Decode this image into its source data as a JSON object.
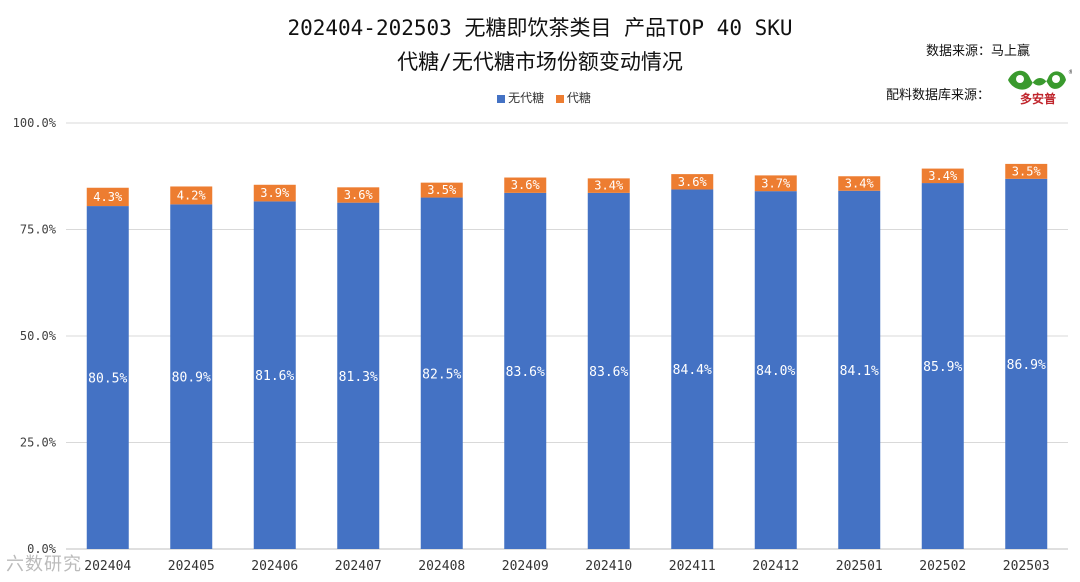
{
  "header": {
    "title_line1": "202404-202503 无糖即饮茶类目 产品TOP 40 SKU",
    "title_line2": "代糖/无代糖市场份额变动情况",
    "source_label": "数据来源：马上赢",
    "db_label": "配料数据库来源：",
    "logo_text": "多安普",
    "watermark": "六数研究"
  },
  "colors": {
    "no_sweetener": "#4472C4",
    "sweetener": "#ED7D31",
    "grid": "#d9d9d9",
    "axis": "#bfbfbf"
  },
  "chart_data": {
    "type": "bar",
    "stacked": true,
    "title": "202404-202503 无糖即饮茶类目 产品TOP 40 SKU 代糖/无代糖市场份额变动情况",
    "categories": [
      "202404",
      "202405",
      "202406",
      "202407",
      "202408",
      "202409",
      "202410",
      "202411",
      "202412",
      "202501",
      "202502",
      "202503"
    ],
    "series": [
      {
        "name": "无代糖",
        "values": [
          80.5,
          80.9,
          81.6,
          81.3,
          82.5,
          83.6,
          83.6,
          84.4,
          84.0,
          84.1,
          85.9,
          86.9
        ]
      },
      {
        "name": "代糖",
        "values": [
          4.3,
          4.2,
          3.9,
          3.6,
          3.5,
          3.6,
          3.4,
          3.6,
          3.7,
          3.4,
          3.4,
          3.5
        ]
      }
    ],
    "ylim": [
      0,
      100
    ],
    "yticks": [
      0,
      25,
      50,
      75,
      100
    ],
    "ytick_labels": [
      "0.0%",
      "25.0%",
      "50.0%",
      "75.0%",
      "100.0%"
    ],
    "legend_position": "top-center",
    "grid": true
  }
}
